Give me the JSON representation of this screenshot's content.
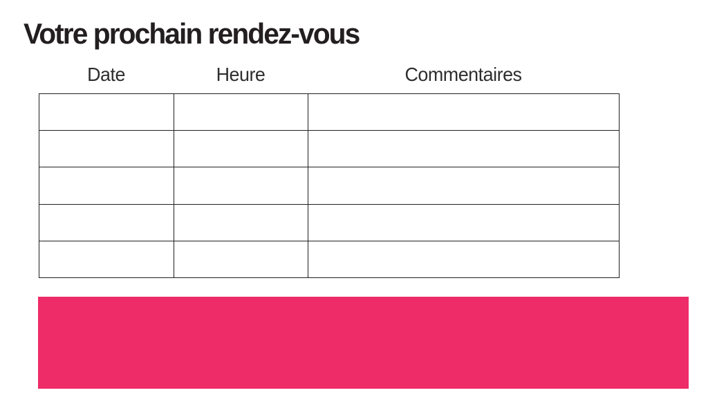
{
  "page": {
    "title": "Votre prochain rendez-vous"
  },
  "table": {
    "columns": [
      "Date",
      "Heure",
      "Commentaires"
    ],
    "rows": [
      [
        "",
        "",
        ""
      ],
      [
        "",
        "",
        ""
      ],
      [
        "",
        "",
        ""
      ],
      [
        "",
        "",
        ""
      ],
      [
        "",
        "",
        ""
      ]
    ]
  },
  "colors": {
    "accent_pink": "#ee2c67",
    "table_border": "#1f1f1f",
    "title_text": "#231f20",
    "header_text": "#2e2e2e"
  }
}
